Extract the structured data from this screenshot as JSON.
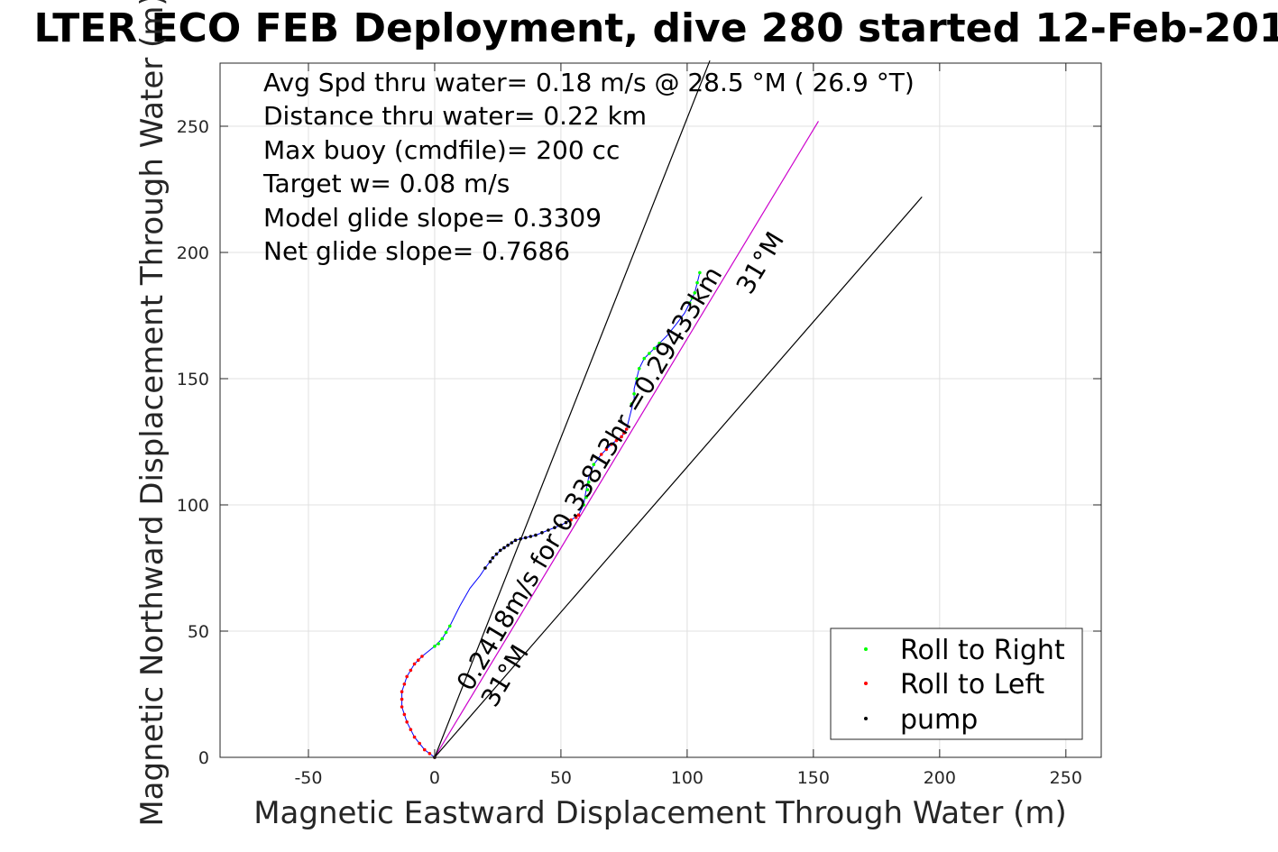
{
  "chart_data": {
    "type": "scatter",
    "title": "LTER ECO FEB Deployment, dive 280 started 12-Feb-201",
    "xlabel": "Magnetic Eastward Displacement Through Water (m)",
    "ylabel": "Magnetic Northward Displacement Through Water (m)",
    "xlim": [
      -85,
      264
    ],
    "ylim": [
      0,
      275
    ],
    "xticks": [
      -50,
      0,
      50,
      100,
      150,
      200,
      250
    ],
    "yticks": [
      0,
      50,
      100,
      150,
      200,
      250
    ],
    "xtick_labels": [
      "-50",
      "0",
      "50",
      "100",
      "150",
      "200",
      "250"
    ],
    "ytick_labels": [
      "0",
      "50",
      "100",
      "150",
      "200",
      "250"
    ],
    "grid": true,
    "annotations": [
      "Avg Spd thru water=  0.18 m/s @  28.5 °M ( 26.9 °T)",
      "Distance thru water=  0.22 km",
      "Max buoy (cmdfile)= 200 cc",
      "Target w= 0.08 m/s",
      "Model glide slope= 0.3309",
      "Net glide slope= 0.7686"
    ],
    "rotated_labels": {
      "path": "0.2418m/s for 0.33813hr =0.29433km",
      "heading_top": "31°M",
      "heading_bottom": "31°M"
    },
    "reference_lines": [
      {
        "name": "heading",
        "color": "#cc00cc",
        "points": [
          [
            0,
            0
          ],
          [
            152,
            252
          ]
        ]
      },
      {
        "name": "upper-bound",
        "color": "#000000",
        "points": [
          [
            0,
            0
          ],
          [
            109,
            276
          ]
        ]
      },
      {
        "name": "lower-bound",
        "color": "#000000",
        "points": [
          [
            0,
            0
          ],
          [
            193,
            222
          ]
        ]
      }
    ],
    "track": {
      "color": "#0000ff",
      "points": [
        [
          0,
          0
        ],
        [
          -4,
          3
        ],
        [
          -8,
          8
        ],
        [
          -11,
          14
        ],
        [
          -13,
          20
        ],
        [
          -13,
          26
        ],
        [
          -11,
          32
        ],
        [
          -8,
          37
        ],
        [
          -5,
          40
        ],
        [
          0,
          44
        ],
        [
          3,
          47
        ],
        [
          6,
          52
        ],
        [
          10,
          60
        ],
        [
          14,
          67
        ],
        [
          18,
          72
        ],
        [
          20,
          75
        ],
        [
          23,
          79
        ],
        [
          26,
          82
        ],
        [
          29,
          84
        ],
        [
          32,
          86
        ],
        [
          36,
          87
        ],
        [
          40,
          88
        ],
        [
          45,
          90
        ],
        [
          50,
          92
        ],
        [
          54,
          94
        ],
        [
          57,
          96
        ],
        [
          59,
          100
        ],
        [
          60,
          106
        ],
        [
          61,
          111
        ],
        [
          63,
          116
        ],
        [
          66,
          120
        ],
        [
          70,
          124
        ],
        [
          74,
          127
        ],
        [
          76,
          130
        ],
        [
          77,
          134
        ],
        [
          78,
          138
        ],
        [
          79,
          142
        ],
        [
          79,
          146
        ],
        [
          80,
          150
        ],
        [
          81,
          154
        ],
        [
          83,
          158
        ],
        [
          86,
          161
        ],
        [
          89,
          164
        ],
        [
          92,
          167
        ],
        [
          96,
          172
        ],
        [
          99,
          176
        ],
        [
          101,
          180
        ],
        [
          103,
          184
        ],
        [
          104,
          188
        ],
        [
          105,
          192
        ]
      ]
    },
    "series": [
      {
        "name": "Roll to Right",
        "color": "#00ff00",
        "points": [
          [
            0,
            44
          ],
          [
            1.5,
            45
          ],
          [
            3,
            47
          ],
          [
            4.5,
            49.5
          ],
          [
            6,
            52
          ],
          [
            59,
            100
          ],
          [
            60,
            103
          ],
          [
            60.5,
            106
          ],
          [
            61,
            109
          ],
          [
            63,
            116
          ],
          [
            78,
            140
          ],
          [
            79,
            144
          ],
          [
            80,
            150
          ],
          [
            81,
            154
          ],
          [
            83,
            158
          ],
          [
            85,
            160
          ],
          [
            87,
            162
          ],
          [
            89,
            164
          ],
          [
            101,
            180
          ],
          [
            102,
            182
          ],
          [
            103,
            184
          ],
          [
            104,
            188
          ],
          [
            105,
            192
          ]
        ]
      },
      {
        "name": "Roll to Left",
        "color": "#ff0000",
        "points": [
          [
            0,
            0
          ],
          [
            -2,
            1.5
          ],
          [
            -4,
            3
          ],
          [
            -6,
            5.5
          ],
          [
            -8,
            8
          ],
          [
            -9.5,
            11
          ],
          [
            -11,
            14
          ],
          [
            -12,
            17
          ],
          [
            -13,
            20
          ],
          [
            -13,
            23
          ],
          [
            -13,
            26
          ],
          [
            -12,
            29
          ],
          [
            -11,
            32
          ],
          [
            -9.5,
            34.5
          ],
          [
            -8,
            37
          ],
          [
            -6.5,
            38.5
          ],
          [
            -5,
            40
          ],
          [
            54,
            94
          ],
          [
            56,
            95
          ],
          [
            57,
            96
          ],
          [
            66,
            120
          ],
          [
            68,
            122
          ],
          [
            70,
            124
          ],
          [
            72,
            125.5
          ],
          [
            74,
            127
          ],
          [
            75,
            128.5
          ],
          [
            76,
            130
          ]
        ]
      },
      {
        "name": "pump",
        "color": "#000000",
        "points": [
          [
            0,
            0
          ],
          [
            20,
            75
          ],
          [
            22,
            77.5
          ],
          [
            23,
            79
          ],
          [
            24.5,
            80.5
          ],
          [
            26,
            82
          ],
          [
            27.5,
            83
          ],
          [
            29,
            84
          ],
          [
            30.5,
            85
          ],
          [
            32,
            86
          ],
          [
            34,
            86.5
          ],
          [
            36,
            87
          ],
          [
            38,
            87.5
          ],
          [
            40,
            88
          ],
          [
            42.5,
            89
          ],
          [
            45,
            90
          ],
          [
            47.5,
            91
          ],
          [
            50,
            92
          ],
          [
            52,
            93
          ]
        ]
      }
    ]
  }
}
